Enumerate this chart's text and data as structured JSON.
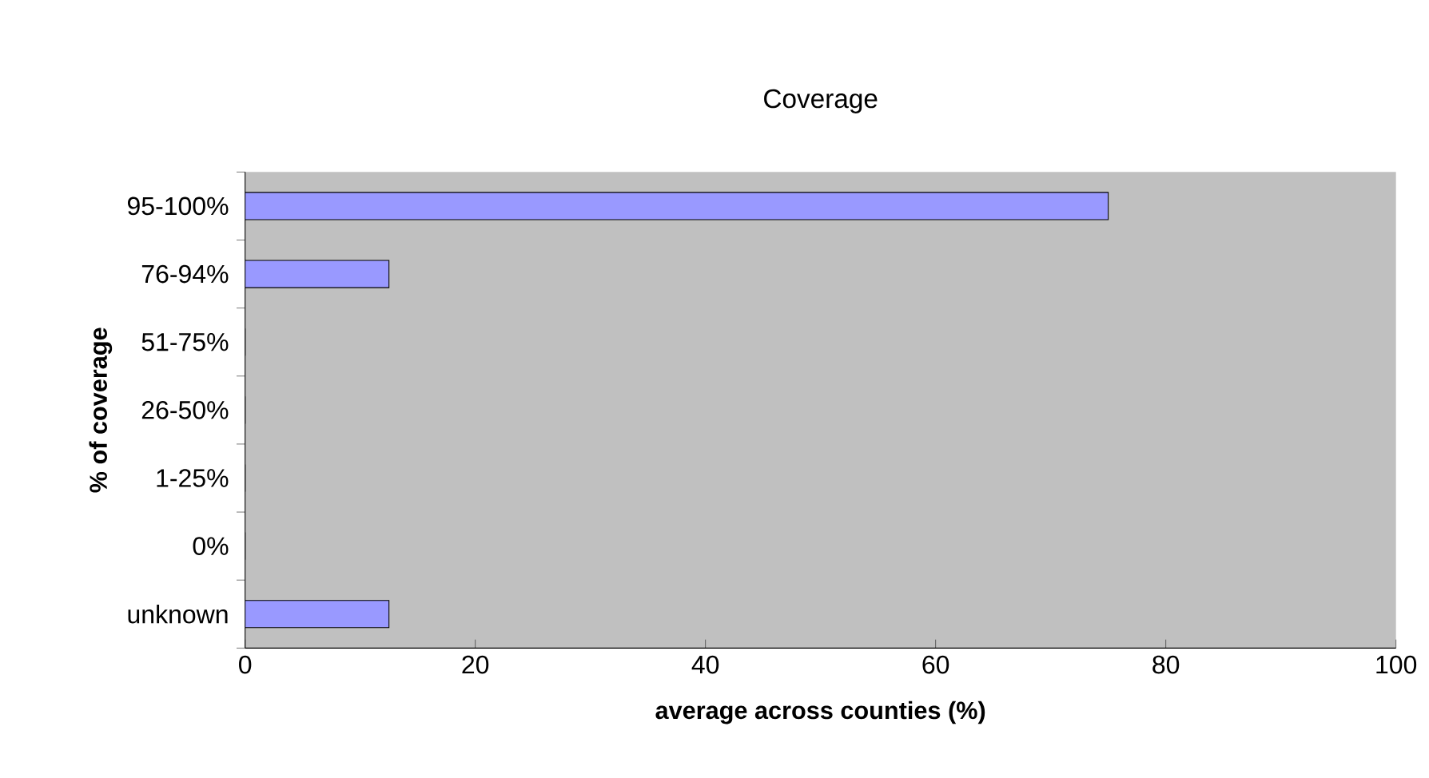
{
  "chart_data": {
    "type": "bar",
    "orientation": "horizontal",
    "title": "Coverage",
    "xlabel": "average across counties (%)",
    "ylabel": "% of coverage",
    "categories": [
      "95-100%",
      "76-94%",
      "51-75%",
      "26-50%",
      "1-25%",
      "0%",
      "unknown"
    ],
    "values": [
      75,
      12.5,
      0,
      0,
      0,
      0,
      12.5
    ],
    "color": "#9999ff",
    "xlim": [
      0,
      100
    ],
    "xticks": [
      0,
      20,
      40,
      60,
      80,
      100
    ]
  }
}
